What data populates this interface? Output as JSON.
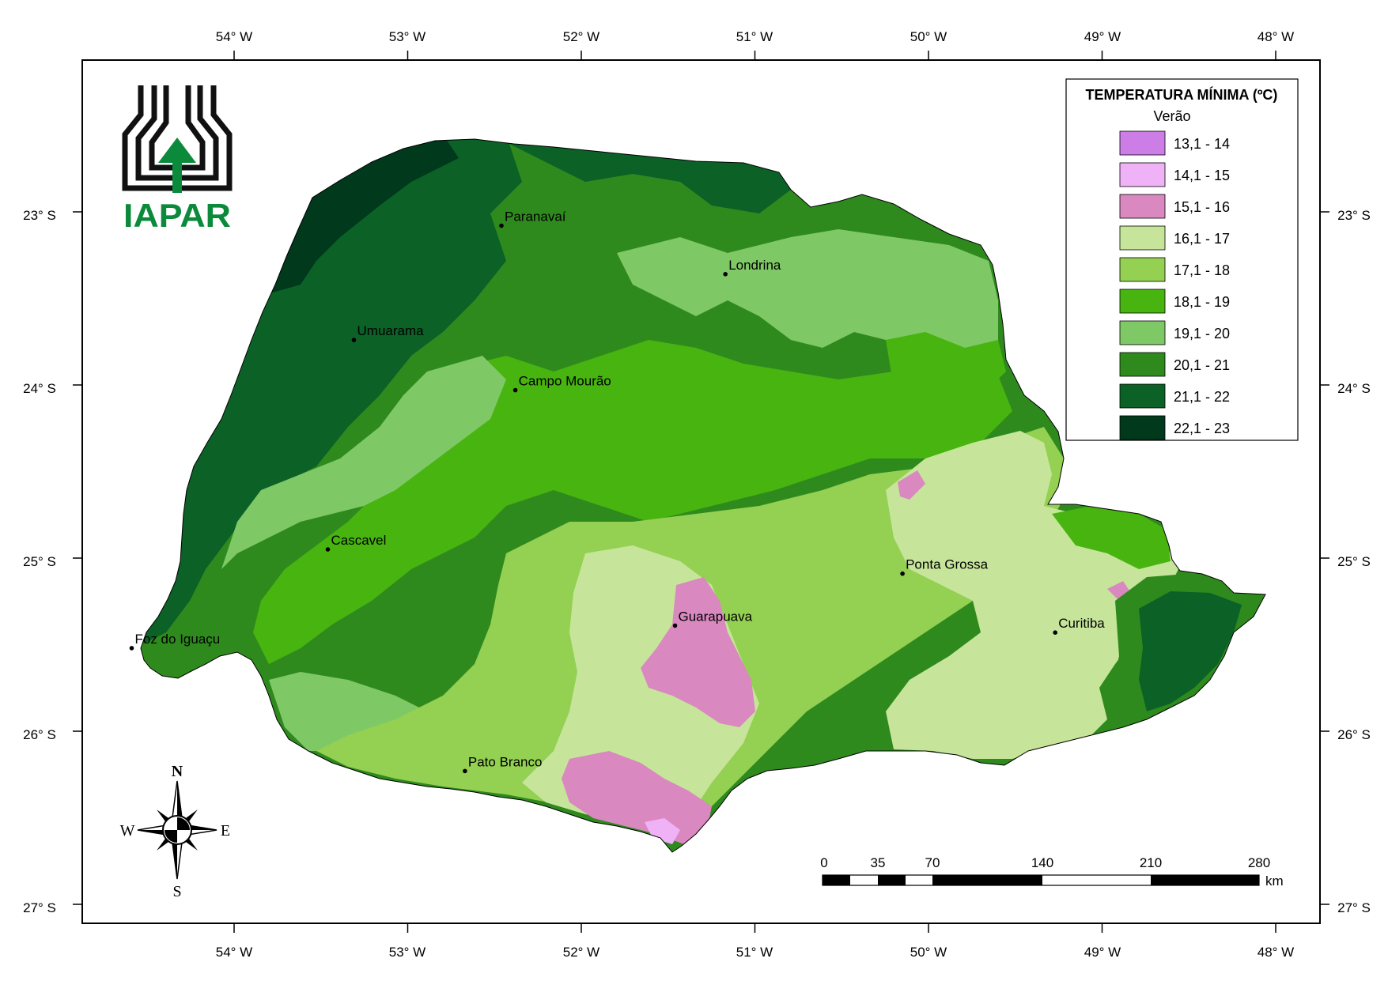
{
  "logo": {
    "text": "IAPAR",
    "color": "#0a8a3a"
  },
  "legend": {
    "title": "TEMPERATURA MÍNIMA (ºC)",
    "subtitle": "Verão",
    "classes": [
      {
        "label": "13,1 - 14",
        "color": "#cc7ee6"
      },
      {
        "label": "14,1 - 15",
        "color": "#f0b2f7"
      },
      {
        "label": "15,1 - 16",
        "color": "#d988c0"
      },
      {
        "label": "16,1 - 17",
        "color": "#c6e59a"
      },
      {
        "label": "17,1 - 18",
        "color": "#94d052"
      },
      {
        "label": "18,1 - 19",
        "color": "#48b410"
      },
      {
        "label": "19,1 - 20",
        "color": "#7fc866"
      },
      {
        "label": "20,1 - 21",
        "color": "#2f8a1e"
      },
      {
        "label": "21,1 - 22",
        "color": "#0b6126"
      },
      {
        "label": "22,1 - 23",
        "color": "#00391c"
      }
    ]
  },
  "axes": {
    "longitude_labels": [
      "54° W",
      "53° W",
      "52° W",
      "51° W",
      "50° W",
      "49° W",
      "48° W"
    ],
    "latitude_labels": [
      "23° S",
      "24° S",
      "25° S",
      "26° S",
      "27° S"
    ]
  },
  "cities": [
    {
      "name": "Paranavaí",
      "lon": -52.46,
      "lat": -23.08
    },
    {
      "name": "Londrina",
      "lon": -51.17,
      "lat": -23.36
    },
    {
      "name": "Umuarama",
      "lon": -53.31,
      "lat": -23.74
    },
    {
      "name": "Campo Mourão",
      "lon": -52.38,
      "lat": -24.03
    },
    {
      "name": "Cascavel",
      "lon": -53.46,
      "lat": -24.95
    },
    {
      "name": "Ponta Grossa",
      "lon": -50.15,
      "lat": -25.09
    },
    {
      "name": "Guarapuava",
      "lon": -51.46,
      "lat": -25.39
    },
    {
      "name": "Curitiba",
      "lon": -49.27,
      "lat": -25.43
    },
    {
      "name": "Foz do Iguaçu",
      "lon": -54.59,
      "lat": -25.52
    },
    {
      "name": "Pato Branco",
      "lon": -52.67,
      "lat": -26.23
    }
  ],
  "compass": {
    "north": "N",
    "south": "S",
    "east": "E",
    "west": "W"
  },
  "scale_bar": {
    "ticks": [
      "0",
      "35",
      "70",
      "140",
      "210",
      "280"
    ],
    "unit": "km"
  }
}
